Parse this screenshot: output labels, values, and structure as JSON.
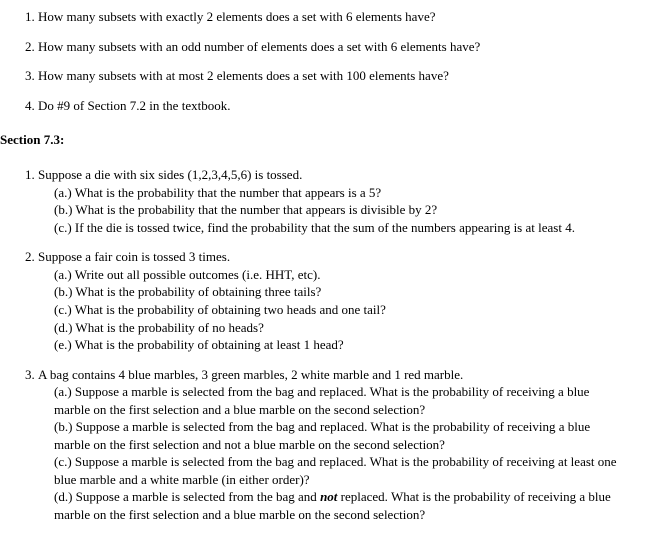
{
  "list1": {
    "q1": "How many subsets with exactly 2 elements does a set with 6 elements have?",
    "q2": "How many subsets with an odd number of elements does a set with 6 elements have?",
    "q3": "How many subsets with at most 2 elements does a set with 100 elements have?",
    "q4": "Do #9 of Section 7.2 in the textbook."
  },
  "section_label": "Section 7.3:",
  "list2": {
    "q1": {
      "stem": "Suppose a die with six sides (1,2,3,4,5,6) is tossed.",
      "a": "(a.) What is the probability that the number that appears is a 5?",
      "b": "(b.) What is the probability that the number that appears is divisible by 2?",
      "c": "(c.) If the die is tossed twice, find the probability that the sum of the numbers appearing is at least 4."
    },
    "q2": {
      "stem": "Suppose a fair coin is tossed 3 times.",
      "a": "(a.) Write out all possible outcomes (i.e. HHT, etc).",
      "b": "(b.) What is the probability of obtaining three tails?",
      "c": "(c.) What is the probability of obtaining two heads and one tail?",
      "d": "(d.) What is the probability of no heads?",
      "e": "(e.) What is the probability of obtaining at least 1 head?"
    },
    "q3": {
      "stem": "A bag contains 4 blue marbles, 3 green marbles, 2 white marble and 1 red marble.",
      "a": "(a.) Suppose a marble is selected from the bag and replaced. What is the probability of receiving a blue marble on the first selection and a blue marble on the second selection?",
      "b": "(b.) Suppose a marble is selected from the bag and replaced. What is the probability of receiving a blue marble on the first selection and not a blue marble on the second selection?",
      "c": "(c.) Suppose a marble is selected from the bag and replaced. What is the probability of receiving at least one blue marble and a white marble (in either order)?",
      "d_pre": "(d.) Suppose a marble is selected from the bag and ",
      "d_bold": "not",
      "d_post": " replaced. What is the probability of receiving a blue marble on the first selection and a blue marble on the second selection?"
    }
  }
}
